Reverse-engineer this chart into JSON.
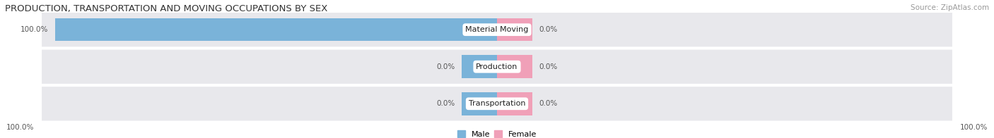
{
  "title": "PRODUCTION, TRANSPORTATION AND MOVING OCCUPATIONS BY SEX",
  "source": "Source: ZipAtlas.com",
  "categories": [
    "Material Moving",
    "Production",
    "Transportation"
  ],
  "male_values": [
    100.0,
    0.0,
    0.0
  ],
  "female_values": [
    0.0,
    0.0,
    0.0
  ],
  "male_color": "#7ab3d9",
  "female_color": "#f0a0b8",
  "label_color": "#555555",
  "bar_bg_color": "#e8e8ec",
  "title_fontsize": 9.5,
  "source_fontsize": 7.5,
  "label_fontsize": 8.0,
  "bar_label_fontsize": 7.5,
  "max_value": 100.0,
  "figsize": [
    14.06,
    1.96
  ],
  "dpi": 100,
  "male_stub": 8.0,
  "female_stub": 8.0
}
